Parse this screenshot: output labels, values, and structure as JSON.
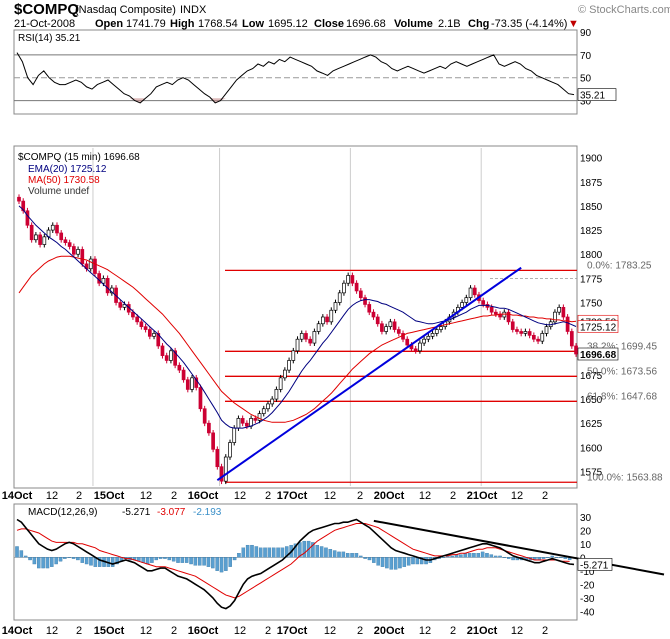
{
  "header": {
    "symbol": "$COMPQ",
    "name": "(Nasdaq Composite)",
    "exchange": "INDX",
    "date": "21-Oct-2008",
    "open_label": "Open",
    "open": "1741.79",
    "high_label": "High",
    "high": "1768.54",
    "low_label": "Low",
    "low": "1695.12",
    "close_label": "Close",
    "close": "1696.68",
    "volume_label": "Volume",
    "volume": "2.1B",
    "chg_label": "Chg",
    "chg": "-73.35 (-4.14%)",
    "chg_arrow": "▼",
    "logo": "© StockCharts.com"
  },
  "colors": {
    "price_up": "#2e7d32",
    "price_down": "#cc0033",
    "ema": "#000080",
    "ma": "#e00000",
    "fib": "#e00000",
    "trend": "#0000dd",
    "macd_hist": "#5a9fd0",
    "macd": "#000000",
    "signal": "#e00000"
  },
  "chart_data": [
    {
      "type": "line",
      "panel": "rsi",
      "legend": "RSI(14) 35.21",
      "ylim": [
        20,
        90
      ],
      "yticks": [
        30,
        50,
        70,
        90
      ],
      "ylevels": [
        30,
        50,
        70
      ],
      "last_value": "35.21",
      "series": [
        {
          "name": "RSI(14)",
          "values": [
            72,
            64,
            50,
            44,
            52,
            56,
            50,
            46,
            44,
            44,
            46,
            48,
            46,
            42,
            40,
            44,
            46,
            48,
            44,
            40,
            36,
            34,
            30,
            28,
            32,
            36,
            42,
            44,
            46,
            44,
            48,
            50,
            48,
            44,
            40,
            36,
            33,
            28,
            30,
            36,
            42,
            48,
            52,
            56,
            58,
            62,
            60,
            64,
            62,
            66,
            64,
            68,
            66,
            64,
            62,
            60,
            56,
            54,
            52,
            56,
            58,
            60,
            62,
            64,
            66,
            68,
            70,
            68,
            64,
            62,
            58,
            56,
            58,
            60,
            58,
            56,
            54,
            56,
            58,
            60,
            58,
            62,
            64,
            62,
            60,
            62,
            64,
            66,
            68,
            70,
            62,
            60,
            62,
            64,
            62,
            58,
            56,
            52,
            50,
            48,
            46,
            44,
            40,
            36,
            35.21
          ]
        }
      ]
    },
    {
      "type": "line",
      "panel": "price",
      "legend_title": "$COMPQ (15 min) 1696.68",
      "legend_ema": "EMA(20) 1725.12",
      "legend_ma": "MA(50) 1730.58",
      "legend_volume": "Volume undef",
      "ylim": [
        1560,
        1910
      ],
      "yticks": [
        1575,
        1600,
        1625,
        1650,
        1675,
        1700,
        1725,
        1750,
        1775,
        1800,
        1825,
        1850,
        1875,
        1900
      ],
      "x_labels": [
        "14Oct",
        "12",
        "2",
        "15Oct",
        "12",
        "2",
        "16Oct",
        "12",
        "2",
        "17Oct",
        "12",
        "2",
        "20Oct",
        "12",
        "2",
        "21Oct",
        "12",
        "2"
      ],
      "fib_levels": [
        {
          "label": "0.0%: 1783.25",
          "value": 1783.25
        },
        {
          "label": "38.2%: 1699.45",
          "value": 1699.45
        },
        {
          "label": "50.0%: 1673.56",
          "value": 1673.56
        },
        {
          "label": "61.8%: 1647.68",
          "value": 1647.68
        },
        {
          "label": "100.0%: 1563.88",
          "value": 1563.88
        }
      ],
      "last_labels": [
        {
          "label": "1730.58",
          "value": 1730.58
        },
        {
          "label": "1725.12",
          "value": 1725.12
        },
        {
          "label": "1696.68",
          "value": 1696.68
        }
      ],
      "trendline": [
        {
          "i": 47,
          "v": 1566
        },
        {
          "i": 119,
          "v": 1786
        }
      ],
      "close": [
        1855,
        1845,
        1830,
        1815,
        1820,
        1810,
        1818,
        1825,
        1830,
        1822,
        1815,
        1812,
        1808,
        1800,
        1805,
        1790,
        1785,
        1795,
        1780,
        1770,
        1775,
        1760,
        1765,
        1750,
        1745,
        1748,
        1740,
        1735,
        1730,
        1725,
        1722,
        1715,
        1718,
        1705,
        1695,
        1690,
        1700,
        1685,
        1680,
        1670,
        1660,
        1672,
        1662,
        1640,
        1625,
        1615,
        1598,
        1580,
        1565,
        1590,
        1605,
        1620,
        1630,
        1625,
        1622,
        1630,
        1628,
        1635,
        1640,
        1645,
        1650,
        1660,
        1672,
        1680,
        1690,
        1700,
        1712,
        1718,
        1712,
        1708,
        1720,
        1728,
        1735,
        1730,
        1742,
        1750,
        1760,
        1770,
        1778,
        1770,
        1762,
        1755,
        1748,
        1740,
        1735,
        1728,
        1720,
        1725,
        1730,
        1722,
        1718,
        1712,
        1706,
        1702,
        1700,
        1708,
        1712,
        1715,
        1718,
        1722,
        1725,
        1730,
        1735,
        1740,
        1745,
        1750,
        1755,
        1765,
        1758,
        1752,
        1748,
        1745,
        1740,
        1738,
        1735,
        1740,
        1730,
        1722,
        1720,
        1718,
        1720,
        1716,
        1712,
        1710,
        1718,
        1725,
        1730,
        1740,
        1745,
        1735,
        1720,
        1705,
        1696.68
      ],
      "series": [
        {
          "name": "EMA(20)",
          "values": [
            1850,
            1846,
            1840,
            1835,
            1830,
            1826,
            1822,
            1818,
            1815,
            1812,
            1808,
            1805,
            1801,
            1797,
            1793,
            1789,
            1785,
            1781,
            1777,
            1773,
            1769,
            1765,
            1761,
            1757,
            1753,
            1749,
            1745,
            1741,
            1737,
            1733,
            1729,
            1725,
            1721,
            1717,
            1712,
            1707,
            1703,
            1698,
            1693,
            1688,
            1682,
            1676,
            1670,
            1664,
            1657,
            1650,
            1643,
            1636,
            1628,
            1624,
            1621,
            1620,
            1620,
            1620,
            1621,
            1622,
            1624,
            1626,
            1629,
            1632,
            1636,
            1641,
            1646,
            1652,
            1658,
            1665,
            1672,
            1679,
            1685,
            1690,
            1696,
            1702,
            1708,
            1713,
            1719,
            1725,
            1731,
            1737,
            1743,
            1747,
            1750,
            1752,
            1753,
            1753,
            1752,
            1751,
            1749,
            1748,
            1746,
            1744,
            1742,
            1740,
            1737,
            1734,
            1731,
            1730,
            1729,
            1728,
            1728,
            1729,
            1730,
            1731,
            1732,
            1734,
            1736,
            1738,
            1740,
            1743,
            1745,
            1747,
            1747,
            1747,
            1746,
            1745,
            1744,
            1744,
            1743,
            1741,
            1739,
            1737,
            1735,
            1733,
            1731,
            1729,
            1728,
            1727,
            1727,
            1728,
            1729,
            1730,
            1729,
            1727,
            1725.12
          ]
        },
        {
          "name": "MA(50)",
          "values": [
            1760,
            1766,
            1772,
            1778,
            1782,
            1786,
            1790,
            1793,
            1795,
            1797,
            1798,
            1798,
            1798,
            1797,
            1796,
            1795,
            1794,
            1792,
            1790,
            1788,
            1786,
            1784,
            1781,
            1778,
            1775,
            1772,
            1769,
            1766,
            1762,
            1758,
            1754,
            1750,
            1746,
            1742,
            1738,
            1733,
            1728,
            1723,
            1718,
            1712,
            1706,
            1700,
            1694,
            1688,
            1682,
            1676,
            1670,
            1664,
            1658,
            1654,
            1650,
            1646,
            1643,
            1640,
            1637,
            1634,
            1632,
            1630,
            1628,
            1627,
            1626,
            1626,
            1626,
            1626,
            1627,
            1628,
            1630,
            1632,
            1634,
            1637,
            1640,
            1644,
            1648,
            1652,
            1656,
            1661,
            1666,
            1671,
            1676,
            1681,
            1685,
            1689,
            1693,
            1697,
            1700,
            1703,
            1706,
            1708,
            1710,
            1712,
            1714,
            1716,
            1718,
            1719,
            1720,
            1721,
            1722,
            1723,
            1724,
            1725,
            1726,
            1727,
            1728,
            1729,
            1730,
            1731,
            1732,
            1733,
            1734,
            1735,
            1736,
            1736,
            1737,
            1737,
            1738,
            1738,
            1738,
            1737,
            1737,
            1736,
            1736,
            1735,
            1735,
            1734,
            1734,
            1733,
            1733,
            1732,
            1732,
            1731,
            1731,
            1730,
            1730.58
          ]
        }
      ]
    },
    {
      "type": "bar",
      "panel": "macd",
      "legend_label": "MACD(12,26,9)",
      "legend_macd": "-5.271",
      "legend_signal": "-3.077",
      "legend_hist": "-2.193",
      "ylim": [
        -45,
        38
      ],
      "yticks": [
        30,
        20,
        10,
        0,
        -10,
        -20,
        -30,
        -40
      ],
      "last_value": "-5.271",
      "trendline": [
        {
          "i": 82,
          "v": 27
        },
        {
          "i": 150,
          "v": -12
        }
      ],
      "series": [
        {
          "name": "MACD",
          "values": [
            28,
            26,
            22,
            18,
            14,
            10,
            8,
            6,
            5,
            6,
            8,
            10,
            11,
            10,
            8,
            6,
            4,
            2,
            0,
            -2,
            -3,
            -4,
            -5,
            -4,
            -3,
            -2,
            -3,
            -4,
            -6,
            -8,
            -10,
            -10,
            -9,
            -8,
            -8,
            -10,
            -12,
            -14,
            -15,
            -16,
            -18,
            -20,
            -22,
            -24,
            -27,
            -30,
            -34,
            -37,
            -38,
            -36,
            -32,
            -26,
            -20,
            -16,
            -14,
            -13,
            -12,
            -10,
            -8,
            -6,
            -4,
            -2,
            1,
            4,
            8,
            12,
            15,
            18,
            20,
            21,
            22,
            23,
            24,
            25,
            25,
            26,
            26,
            27,
            28,
            26,
            24,
            22,
            19,
            16,
            13,
            10,
            7,
            5,
            4,
            3,
            2,
            1,
            0,
            -1,
            -2,
            -2,
            -1,
            0,
            1,
            2,
            3,
            4,
            5,
            6,
            7,
            8,
            9,
            10,
            10,
            9,
            8,
            7,
            5,
            3,
            1,
            0,
            -1,
            -2,
            -3,
            -4,
            -4,
            -3,
            -2,
            -1,
            -2,
            -3,
            -4,
            -5,
            -5.271
          ]
        },
        {
          "name": "Signal",
          "values": [
            20,
            21,
            21,
            20,
            19,
            18,
            16,
            14,
            12,
            11,
            11,
            11,
            11,
            11,
            10,
            10,
            9,
            8,
            7,
            5,
            4,
            3,
            2,
            1,
            0,
            -1,
            -1,
            -2,
            -3,
            -4,
            -5,
            -6,
            -7,
            -7,
            -7,
            -8,
            -9,
            -10,
            -11,
            -12,
            -13,
            -14,
            -16,
            -18,
            -20,
            -22,
            -24,
            -26,
            -28,
            -29,
            -30,
            -29,
            -27,
            -25,
            -23,
            -21,
            -19,
            -17,
            -15,
            -13,
            -11,
            -9,
            -7,
            -5,
            -2,
            1,
            3,
            6,
            9,
            12,
            14,
            16,
            18,
            20,
            21,
            22,
            23,
            24,
            25,
            25,
            25,
            24,
            23,
            22,
            20,
            18,
            16,
            14,
            12,
            10,
            8,
            6,
            5,
            4,
            3,
            2,
            1,
            1,
            1,
            1,
            2,
            2,
            3,
            3,
            4,
            5,
            6,
            6,
            7,
            7,
            7,
            6,
            5,
            4,
            3,
            2,
            1,
            0,
            -1,
            -2,
            -2,
            -2,
            -2,
            -2,
            -2,
            -3,
            -3,
            -3.077
          ]
        }
      ]
    }
  ]
}
